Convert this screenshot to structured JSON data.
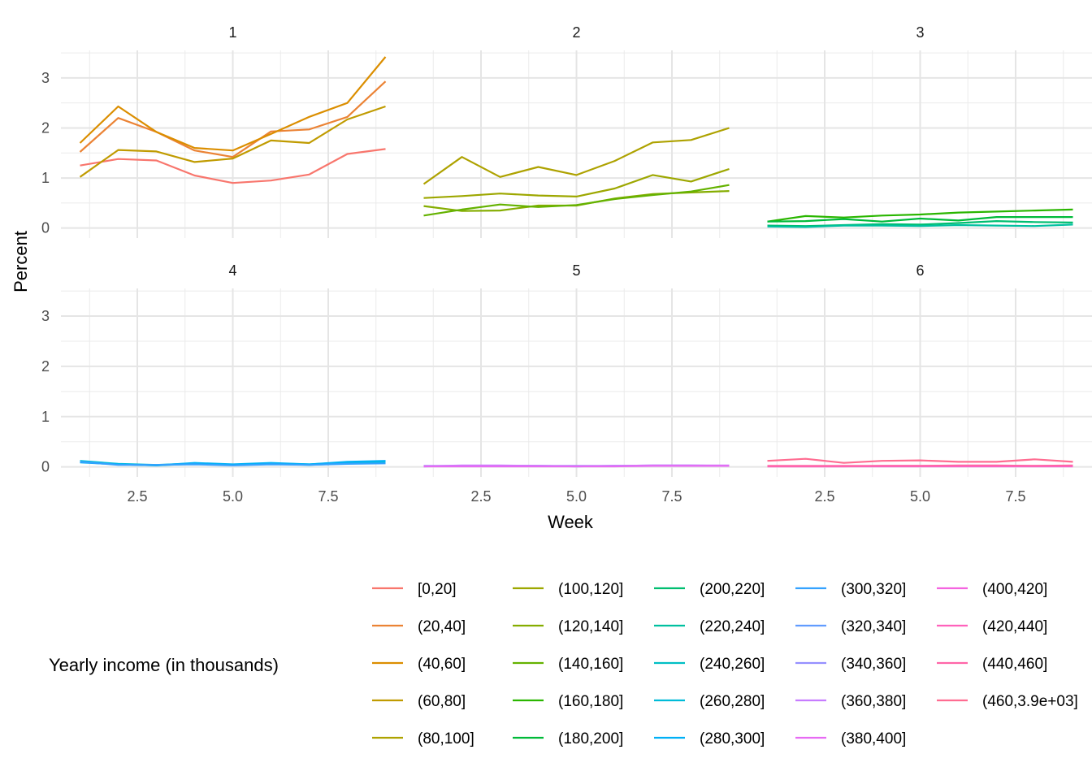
{
  "chart_data": {
    "type": "line",
    "xlabel": "Week",
    "ylabel": "Percent",
    "xlim": [
      0.5,
      9.5
    ],
    "ylim": [
      -0.2,
      3.55
    ],
    "x_ticks": [
      2.5,
      5.0,
      7.5
    ],
    "x_tick_labels": [
      "2.5",
      "5.0",
      "7.5"
    ],
    "y_ticks": [
      0,
      1,
      2,
      3
    ],
    "y_tick_labels": [
      "0",
      "1",
      "2",
      "3"
    ],
    "grid": true,
    "legend_title": "Yearly income (in thousands)",
    "legend_position": "bottom",
    "x": [
      1,
      2,
      3,
      4,
      5,
      6,
      7,
      8,
      9
    ],
    "categories": [
      {
        "label": "[0,20]",
        "color": "#F8766D"
      },
      {
        "label": "(20,40]",
        "color": "#EB8335"
      },
      {
        "label": "(40,60]",
        "color": "#DB8E00"
      },
      {
        "label": "(60,80]",
        "color": "#C09B00"
      },
      {
        "label": "(80,100]",
        "color": "#AEA200"
      },
      {
        "label": "(100,120]",
        "color": "#9DA700"
      },
      {
        "label": "(120,140]",
        "color": "#85AD00"
      },
      {
        "label": "(140,160]",
        "color": "#64B200"
      },
      {
        "label": "(160,180]",
        "color": "#2AB600"
      },
      {
        "label": "(180,200]",
        "color": "#00BA38"
      },
      {
        "label": "(200,220]",
        "color": "#00BE70"
      },
      {
        "label": "(220,240]",
        "color": "#00C0A0"
      },
      {
        "label": "(240,260]",
        "color": "#00BFC4"
      },
      {
        "label": "(260,280]",
        "color": "#00BCD8"
      },
      {
        "label": "(280,300]",
        "color": "#00B0F6"
      },
      {
        "label": "(300,320]",
        "color": "#35A2FF"
      },
      {
        "label": "(320,340]",
        "color": "#619CFF"
      },
      {
        "label": "(340,360]",
        "color": "#9590FF"
      },
      {
        "label": "(360,380]",
        "color": "#C77CFF"
      },
      {
        "label": "(380,400]",
        "color": "#E76BF3"
      },
      {
        "label": "(400,420]",
        "color": "#F464E0"
      },
      {
        "label": "(420,440]",
        "color": "#FF62BC"
      },
      {
        "label": "(440,460]",
        "color": "#FF66A8"
      },
      {
        "label": "(460,3.9e+03]",
        "color": "#FF6C91"
      }
    ],
    "panels": [
      {
        "title": "1",
        "series": [
          {
            "category": "[0,20]",
            "values": [
              1.25,
              1.38,
              1.35,
              1.05,
              0.9,
              0.95,
              1.07,
              1.48,
              1.58
            ]
          },
          {
            "category": "(20,40]",
            "values": [
              1.52,
              2.2,
              1.92,
              1.55,
              1.42,
              1.93,
              1.97,
              2.22,
              2.93
            ]
          },
          {
            "category": "(40,60]",
            "values": [
              1.7,
              2.43,
              1.92,
              1.6,
              1.55,
              1.88,
              2.22,
              2.5,
              3.42
            ]
          },
          {
            "category": "(60,80]",
            "values": [
              1.02,
              1.56,
              1.53,
              1.32,
              1.39,
              1.75,
              1.7,
              2.17,
              2.43
            ]
          }
        ]
      },
      {
        "title": "2",
        "series": [
          {
            "category": "(80,100]",
            "values": [
              0.88,
              1.42,
              1.02,
              1.22,
              1.06,
              1.34,
              1.71,
              1.76,
              2.0
            ]
          },
          {
            "category": "(100,120]",
            "values": [
              0.6,
              0.64,
              0.69,
              0.65,
              0.63,
              0.79,
              1.06,
              0.93,
              1.18
            ]
          },
          {
            "category": "(120,140]",
            "values": [
              0.44,
              0.34,
              0.35,
              0.45,
              0.45,
              0.59,
              0.68,
              0.71,
              0.74
            ]
          },
          {
            "category": "(140,160]",
            "values": [
              0.25,
              0.37,
              0.47,
              0.42,
              0.46,
              0.58,
              0.66,
              0.73,
              0.86
            ]
          }
        ]
      },
      {
        "title": "3",
        "series": [
          {
            "category": "(160,180]",
            "values": [
              0.13,
              0.24,
              0.21,
              0.25,
              0.27,
              0.31,
              0.33,
              0.35,
              0.37
            ]
          },
          {
            "category": "(180,200]",
            "values": [
              0.13,
              0.14,
              0.18,
              0.13,
              0.19,
              0.15,
              0.22,
              0.22,
              0.22
            ]
          },
          {
            "category": "(200,220]",
            "values": [
              0.05,
              0.04,
              0.06,
              0.08,
              0.07,
              0.1,
              0.14,
              0.12,
              0.11
            ]
          },
          {
            "category": "(220,240]",
            "values": [
              0.03,
              0.02,
              0.05,
              0.05,
              0.04,
              0.06,
              0.05,
              0.04,
              0.07
            ]
          }
        ]
      },
      {
        "title": "4",
        "series": [
          {
            "category": "(240,260]",
            "values": [
              0.1,
              0.05,
              0.03,
              0.06,
              0.04,
              0.06,
              0.04,
              0.07,
              0.08
            ]
          },
          {
            "category": "(260,280]",
            "values": [
              0.12,
              0.06,
              0.04,
              0.07,
              0.04,
              0.07,
              0.05,
              0.09,
              0.1
            ]
          },
          {
            "category": "(280,300]",
            "values": [
              0.09,
              0.05,
              0.03,
              0.08,
              0.05,
              0.08,
              0.05,
              0.1,
              0.12
            ]
          },
          {
            "category": "(300,320]",
            "values": [
              0.1,
              0.04,
              0.04,
              0.05,
              0.03,
              0.05,
              0.04,
              0.06,
              0.07
            ]
          }
        ]
      },
      {
        "title": "5",
        "series": [
          {
            "category": "(320,340]",
            "values": [
              0.01,
              0.02,
              0.02,
              0.02,
              0.01,
              0.02,
              0.02,
              0.02,
              0.02
            ]
          },
          {
            "category": "(340,360]",
            "values": [
              0.02,
              0.02,
              0.02,
              0.02,
              0.02,
              0.02,
              0.03,
              0.03,
              0.02
            ]
          },
          {
            "category": "(360,380]",
            "values": [
              0.01,
              0.03,
              0.03,
              0.02,
              0.01,
              0.02,
              0.03,
              0.03,
              0.03
            ]
          },
          {
            "category": "(380,400]",
            "values": [
              0.01,
              0.01,
              0.01,
              0.01,
              0.01,
              0.01,
              0.02,
              0.02,
              0.02
            ]
          }
        ]
      },
      {
        "title": "6",
        "series": [
          {
            "category": "(400,420]",
            "values": [
              0.01,
              0.01,
              0.01,
              0.01,
              0.01,
              0.01,
              0.01,
              0.01,
              0.01
            ]
          },
          {
            "category": "(420,440]",
            "values": [
              0.01,
              0.01,
              0.01,
              0.02,
              0.02,
              0.02,
              0.02,
              0.02,
              0.02
            ]
          },
          {
            "category": "(440,460]",
            "values": [
              0.02,
              0.02,
              0.02,
              0.02,
              0.02,
              0.03,
              0.03,
              0.02,
              0.03
            ]
          },
          {
            "category": "(460,3.9e+03]",
            "values": [
              0.12,
              0.16,
              0.08,
              0.12,
              0.13,
              0.1,
              0.1,
              0.15,
              0.1
            ]
          }
        ]
      }
    ]
  }
}
